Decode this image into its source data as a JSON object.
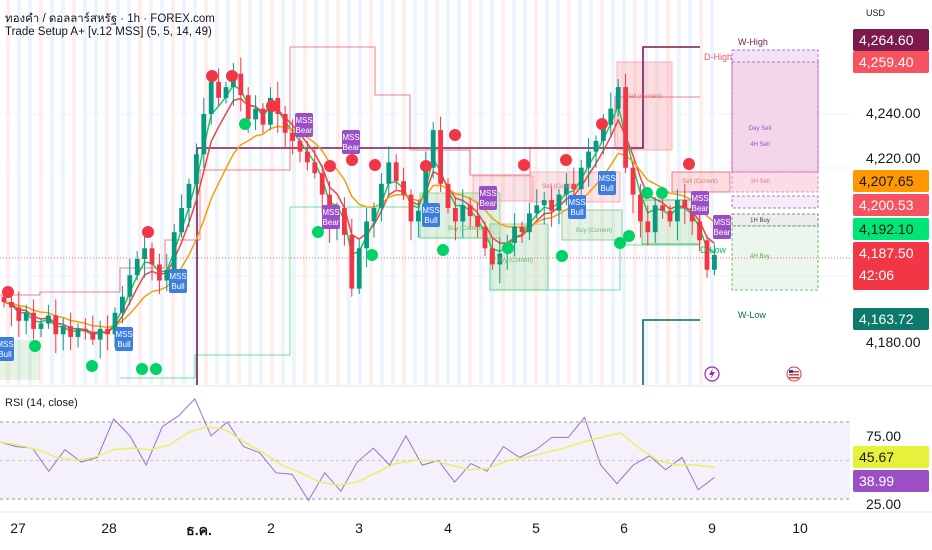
{
  "header": {
    "symbol_line": "ทองคำ / ดอลลาร์สหรัฐ · 1h · FOREX.com",
    "indicator_line": "Trade Setup A+ [v.12 MSS] (5, 5, 14, 49)"
  },
  "price_axis": {
    "currency": "USD",
    "ticks": [
      "4,240.00",
      "4,220.00",
      "4,180.00"
    ],
    "tags": [
      {
        "label": "4,264.60",
        "bg": "#7b1a4b",
        "fg": "#ffffff"
      },
      {
        "label": "4,259.40",
        "bg": "#f7525f",
        "fg": "#ffffff"
      },
      {
        "label": "4,207.65",
        "bg": "#ff9800",
        "fg": "#131722"
      },
      {
        "label": "4,200.53",
        "bg": "#f7525f",
        "fg": "#ffffff"
      },
      {
        "label": "4,192.10",
        "bg": "#00e676",
        "fg": "#131722"
      },
      {
        "label": "4,187.50",
        "bg": "#f23645",
        "fg": "#ffffff"
      },
      {
        "label": "4,163.72",
        "bg": "#0b7a6b",
        "fg": "#ffffff"
      }
    ],
    "countdown": "42:06"
  },
  "annotations": {
    "mss_bull": "MSS\nBull",
    "mss_bear": "MSS\nBear",
    "mss_word": "MSS",
    "bull_word": "Bull",
    "bear_word": "Bear",
    "sell_current": "Sell (Current)",
    "buy_current": "Buy (Current)",
    "w_high": "W-High",
    "d_high": "D-High",
    "d_low": "D-Low",
    "w_low": "W-Low",
    "day_sell": "Day Sell",
    "h4_sell": "4H Sell",
    "h1_sell": "1H Sell",
    "h1_buy": "1H Buy",
    "h4_buy": "4H Buy"
  },
  "rsi_panel": {
    "title": "RSI (14, close)",
    "ticks": [
      "75.00",
      "25.00"
    ],
    "tags": [
      {
        "label": "45.67",
        "bg": "#e6f13b",
        "fg": "#131722"
      },
      {
        "label": "38.99",
        "bg": "#9c4fc5",
        "fg": "#ffffff"
      }
    ]
  },
  "x_axis": [
    "27",
    "28",
    "ธ.ค.",
    "2",
    "3",
    "4",
    "5",
    "6",
    "9",
    "10"
  ],
  "colors": {
    "up": "#089981",
    "down": "#f23645",
    "ema_fast": "#22c55e",
    "ema_mid": "#ef4444",
    "ema_slow": "#f59e0b",
    "rsi": "#9575cd",
    "rsi_ma": "#e9ef6a"
  },
  "chart_data": [
    {
      "type": "candlestick",
      "title": "ทองคำ / ดอลลาร์สหรัฐ · 1h · FOREX.com",
      "ylabel": "USD",
      "ylim": [
        4150,
        4275
      ],
      "close": [
        4170,
        4168,
        4163,
        4166,
        4160,
        4162,
        4165,
        4158,
        4161,
        4157,
        4160,
        4159,
        4156,
        4160,
        4158,
        4166,
        4172,
        4180,
        4186,
        4190,
        4184,
        4178,
        4182,
        4196,
        4205,
        4214,
        4225,
        4240,
        4252,
        4246,
        4250,
        4255,
        4247,
        4238,
        4242,
        4236,
        4246,
        4240,
        4233,
        4230,
        4226,
        4222,
        4218,
        4210,
        4198,
        4205,
        4195,
        4175,
        4190,
        4200,
        4205,
        4214,
        4222,
        4215,
        4210,
        4200,
        4204,
        4220,
        4234,
        4214,
        4205,
        4200,
        4206,
        4202,
        4198,
        4190,
        4184,
        4188,
        4192,
        4198,
        4196,
        4203,
        4206,
        4208,
        4204,
        4210,
        4214,
        4212,
        4220,
        4226,
        4230,
        4236,
        4242,
        4250,
        4220,
        4210,
        4200,
        4196,
        4206,
        4204,
        4200,
        4208,
        4205,
        4200,
        4193,
        4182,
        4187.5
      ],
      "levels": {
        "w_high": 4264.6,
        "d_high": 4259.4,
        "d_low": 4192.1,
        "w_low": 4163.72,
        "last": 4187.5
      }
    },
    {
      "type": "line",
      "title": "RSI (14, close)",
      "ylim": [
        20,
        85
      ],
      "bands": [
        25,
        50,
        75
      ],
      "series": [
        {
          "name": "RSI",
          "values": [
            62,
            59,
            58,
            43,
            57,
            49,
            52,
            77,
            66,
            47,
            72,
            79,
            90,
            66,
            75,
            59,
            55,
            42,
            41,
            24,
            42,
            30,
            49,
            58,
            47,
            66,
            47,
            50,
            36,
            48,
            43,
            59,
            52,
            57,
            65,
            65,
            78,
            47,
            35,
            47,
            53,
            44,
            52,
            31,
            38.99
          ]
        },
        {
          "name": "RSI MA",
          "values": [
            62,
            60,
            57,
            52,
            50,
            52,
            57,
            58,
            57,
            60,
            68,
            72,
            70,
            62,
            55,
            47,
            42,
            36,
            34,
            36,
            42,
            48,
            50,
            50,
            47,
            44,
            45,
            50,
            52,
            55,
            58,
            62,
            65,
            68,
            58,
            50,
            47,
            47,
            45.67
          ]
        }
      ]
    }
  ]
}
